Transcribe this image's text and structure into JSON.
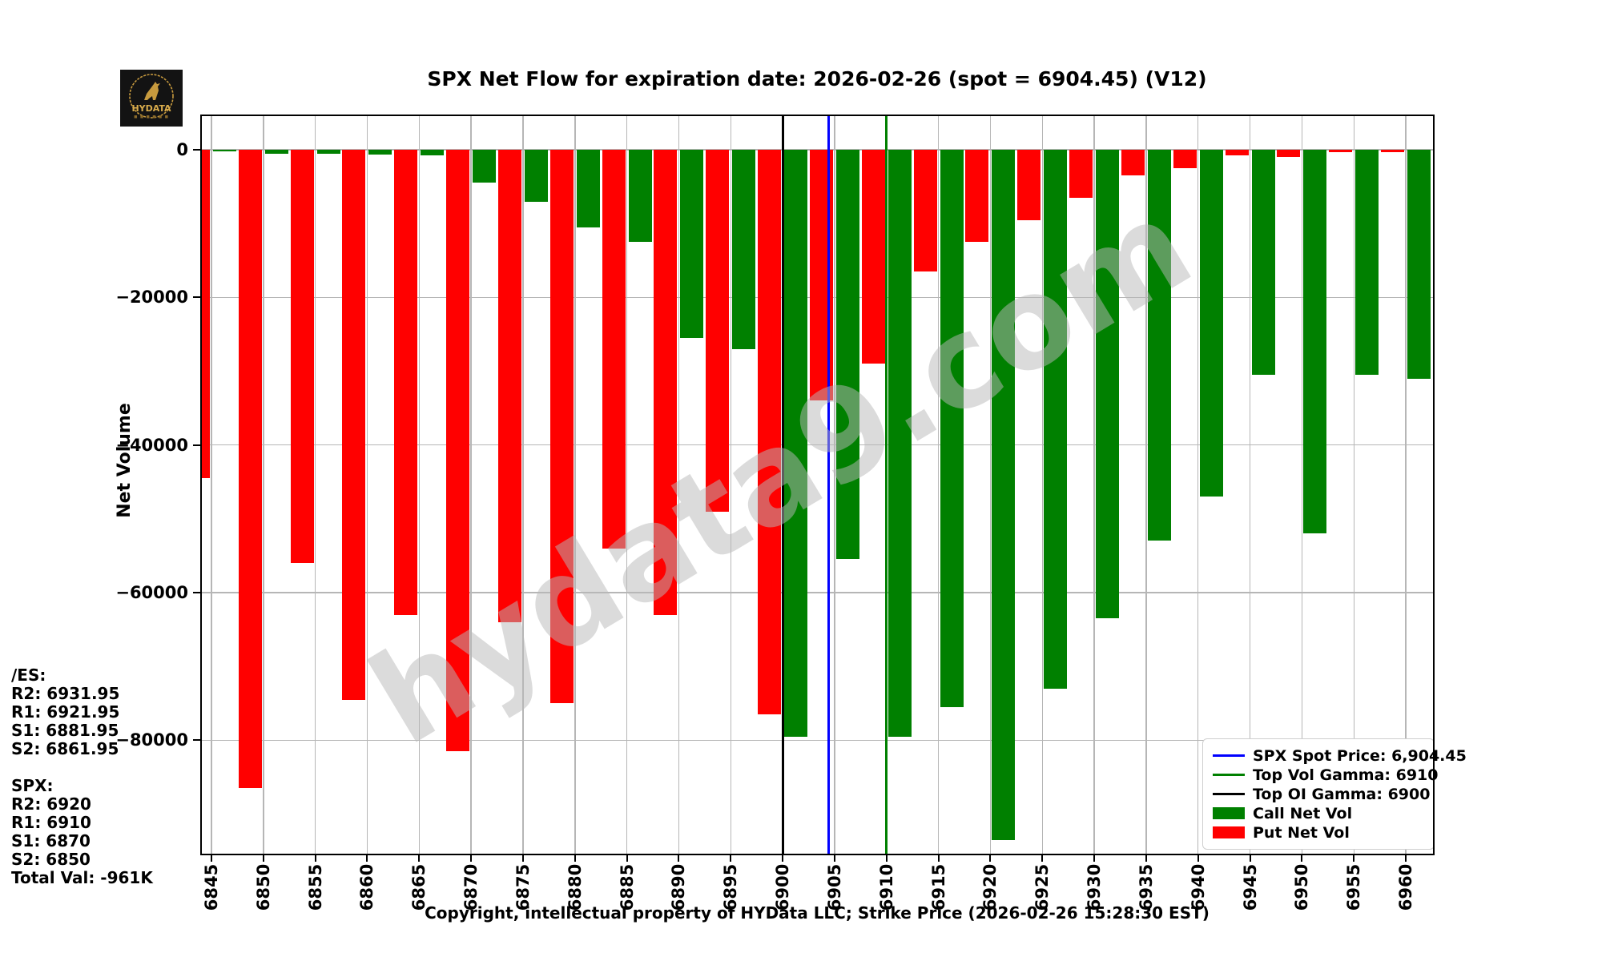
{
  "header": {
    "title": "SPX Net Flow for expiration date: 2026-02-26 (spot = 6904.45) (V12)",
    "logo_text": "HYDATA"
  },
  "watermark": {
    "text": "hydata9.com"
  },
  "y_axis": {
    "label": "Net Volume",
    "tick_labels": [
      "0",
      "−20000",
      "−40000",
      "−60000",
      "−80000"
    ],
    "tick_values": [
      0,
      -20000,
      -40000,
      -60000,
      -80000
    ]
  },
  "left_panel": {
    "lines": [
      "/ES:",
      "R2: 6931.95",
      "R1: 6921.95",
      "S1: 6881.95",
      "S2: 6861.95",
      "",
      "SPX:",
      "R2: 6920",
      "R1: 6910",
      "S1: 6870",
      "S2: 6850",
      "Total Val: -961K"
    ]
  },
  "legend": {
    "items": [
      {
        "type": "line",
        "color": "#0000ff",
        "label": "SPX Spot Price: 6,904.45"
      },
      {
        "type": "line",
        "color": "#008000",
        "label": "Top Vol Gamma: 6910"
      },
      {
        "type": "line",
        "color": "#000000",
        "label": "Top OI Gamma: 6900"
      },
      {
        "type": "patch",
        "color": "#008000",
        "label": "Call Net Vol"
      },
      {
        "type": "patch",
        "color": "#ff0000",
        "label": "Put Net Vol"
      }
    ]
  },
  "footer": {
    "copyright": "Copyright, intellectual property of HYData LLC; Strike Price (2026-02-26 15:28:30 EST)"
  },
  "chart_data": {
    "type": "bar",
    "title": "SPX Net Flow for expiration date: 2026-02-26 (spot = 6904.45) (V12)",
    "xlabel": "Strike Price",
    "ylabel": "Net Volume",
    "categories": [
      6845,
      6850,
      6855,
      6860,
      6865,
      6870,
      6875,
      6880,
      6885,
      6890,
      6895,
      6900,
      6905,
      6910,
      6915,
      6920,
      6925,
      6930,
      6935,
      6940,
      6945,
      6950,
      6955,
      6960
    ],
    "series": [
      {
        "name": "Put Net Vol",
        "color": "#ff0000",
        "values": [
          -44500,
          -86500,
          -56000,
          -74500,
          -63000,
          -81500,
          -64000,
          -75000,
          -54000,
          -63000,
          -49000,
          -76500,
          -34000,
          -29000,
          -16500,
          -12500,
          -9500,
          -6500,
          -3500,
          -2500,
          -800,
          -1000,
          -300,
          -300
        ]
      },
      {
        "name": "Call Net Vol",
        "color": "#008000",
        "values": [
          -200,
          -500,
          -500,
          -700,
          -800,
          -4500,
          -7000,
          -10500,
          -12500,
          -25500,
          -27000,
          -79500,
          -55500,
          -79500,
          -75500,
          -93500,
          -73000,
          -63500,
          -53000,
          -47000,
          -30500,
          -52000,
          -30500,
          -31000
        ]
      }
    ],
    "vlines": [
      {
        "label": "Top OI Gamma: 6900",
        "x": 6900,
        "color": "#000000"
      },
      {
        "label": "SPX Spot Price: 6,904.45",
        "x": 6904.45,
        "color": "#0000ff"
      },
      {
        "label": "Top Vol Gamma: 6910",
        "x": 6910,
        "color": "#008000"
      }
    ],
    "yticks": [
      0,
      -20000,
      -40000,
      -60000,
      -80000
    ],
    "ylim": [
      -95600,
      4800
    ],
    "grid": true,
    "legend_position": "lower right"
  }
}
